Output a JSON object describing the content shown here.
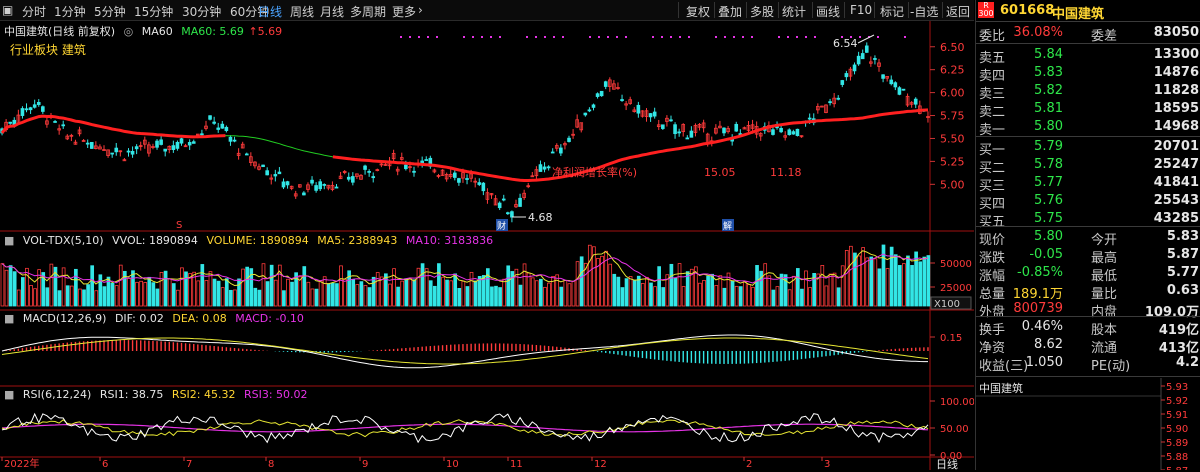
{
  "toolbar": {
    "periods": [
      "分时",
      "1分钟",
      "5分钟",
      "15分钟",
      "30分钟",
      "60分钟",
      "日线",
      "周线",
      "月线",
      "多周期",
      "更多"
    ],
    "active_period": "日线",
    "more_arrow": "chevron-right-icon",
    "actions": [
      "复权",
      "叠加",
      "多股",
      "统计",
      "画线",
      "F10",
      "标记",
      "-自选",
      "返回"
    ]
  },
  "main_panel": {
    "title": "中国建筑(日线 前复权)",
    "ma_label": "MA60",
    "ma60_text": "MA60: 5.69",
    "ma60_delta": "5.69",
    "sector": "行业板块 建筑",
    "high_label": "6.54",
    "low_label": "4.68",
    "annotation_text": "净利润增长率(%)",
    "annotation_val1": "15.05",
    "annotation_val2": "11.18",
    "marker_s": "S",
    "marker_cai": "财",
    "marker_jie": "解",
    "y_ticks": [
      "6.50",
      "6.25",
      "6.00",
      "5.75",
      "5.50",
      "5.25",
      "5.00"
    ]
  },
  "vol_panel": {
    "title": "VOL-TDX(5,10)",
    "vvol": "VVOL: 1890894",
    "volume": "VOLUME: 1890894",
    "ma5": "MA5: 2388943",
    "ma10": "MA10: 3183836",
    "y_ticks": [
      "50000",
      "25000"
    ],
    "unit": "X100"
  },
  "macd_panel": {
    "title": "MACD(12,26,9)",
    "dif": "DIF: 0.02",
    "dea": "DEA: 0.08",
    "macd": "MACD: -0.10",
    "y_ticks": [
      "0.15"
    ]
  },
  "rsi_panel": {
    "title": "RSI(6,12,24)",
    "rsi1": "RSI1: 38.75",
    "rsi2": "RSI2: 45.32",
    "rsi3": "RSI3: 50.02",
    "y_ticks": [
      "100.00",
      "50.00",
      "0.00"
    ]
  },
  "x_axis": [
    "2022年",
    "6",
    "7",
    "8",
    "9",
    "10",
    "11",
    "12",
    "2",
    "3"
  ],
  "bottom_tab": "日线",
  "colors": {
    "up": "#ff3b3b",
    "down": "#33e6e6",
    "ma60": "#ff2020",
    "ma_green": "#22cc22",
    "white_line": "#ffffff",
    "yellow_line": "#e6e633",
    "magenta_line": "#e633e6",
    "dots": "#e633e6"
  },
  "quote": {
    "r_badge": "R",
    "code_num": "300",
    "code": "601668",
    "name": "中国建筑",
    "webi": {
      "label": "委比",
      "value": "36.08%",
      "label2": "委差",
      "value2": "83050"
    },
    "asks": [
      {
        "label": "卖五",
        "price": "5.84",
        "vol": "13300"
      },
      {
        "label": "卖四",
        "price": "5.83",
        "vol": "14876"
      },
      {
        "label": "卖三",
        "price": "5.82",
        "vol": "11828"
      },
      {
        "label": "卖二",
        "price": "5.81",
        "vol": "18595"
      },
      {
        "label": "卖一",
        "price": "5.80",
        "vol": "14968"
      }
    ],
    "bids": [
      {
        "label": "买一",
        "price": "5.79",
        "vol": "20701"
      },
      {
        "label": "买二",
        "price": "5.78",
        "vol": "25247"
      },
      {
        "label": "买三",
        "price": "5.77",
        "vol": "41841"
      },
      {
        "label": "买四",
        "price": "5.76",
        "vol": "25543"
      },
      {
        "label": "买五",
        "price": "5.75",
        "vol": "43285"
      }
    ],
    "stats": [
      {
        "l1": "现价",
        "v1": "5.80",
        "c1": "g",
        "l2": "今开",
        "v2": "5.83",
        "c2": "g"
      },
      {
        "l1": "涨跌",
        "v1": "-0.05",
        "c1": "g",
        "l2": "最高",
        "v2": "5.87",
        "c2": "r"
      },
      {
        "l1": "涨幅",
        "v1": "-0.85%",
        "c1": "g",
        "l2": "最低",
        "v2": "5.77",
        "c2": "g"
      },
      {
        "l1": "总量",
        "v1": "189.1万",
        "c1": "y",
        "l2": "量比",
        "v2": "0.63",
        "c2": "g"
      },
      {
        "l1": "外盘",
        "v1": "800739",
        "c1": "r",
        "l2": "内盘",
        "v2": "109.0万",
        "c2": "g"
      }
    ],
    "stats2": [
      {
        "l1": "换手",
        "v1": "0.46%",
        "c1": "w",
        "l2": "股本",
        "v2": "419亿",
        "c2": "w"
      },
      {
        "l1": "净资",
        "v1": "8.62",
        "c1": "w",
        "l2": "流通",
        "v2": "413亿",
        "c2": "w"
      },
      {
        "l1": "收益(三)",
        "v1": "1.050",
        "c1": "w",
        "l2": "PE(动)",
        "v2": "4.2",
        "c2": "w"
      }
    ],
    "mini_title": "中国建筑",
    "mini_ticks": [
      "5.93",
      "5.92",
      "5.91",
      "5.90",
      "5.89",
      "5.88",
      "5.87"
    ]
  }
}
